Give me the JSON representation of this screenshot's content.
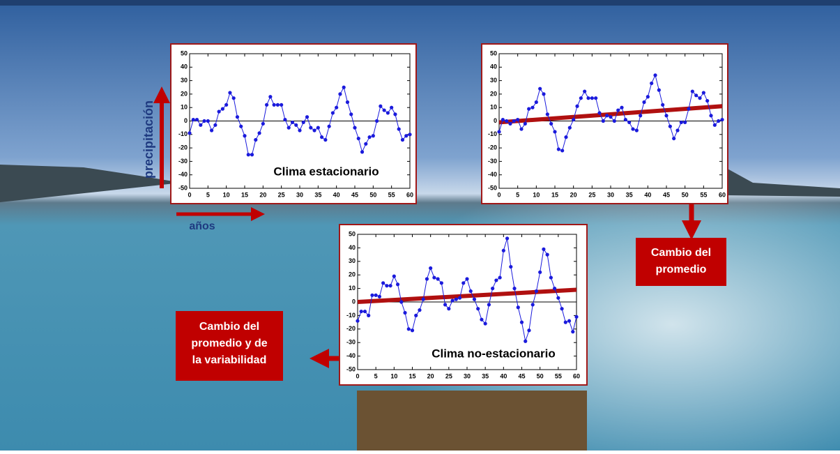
{
  "chart_data": [
    {
      "type": "line",
      "title": "Clima estacionario",
      "x": [
        0,
        1,
        2,
        3,
        4,
        5,
        6,
        7,
        8,
        9,
        10,
        11,
        12,
        13,
        14,
        15,
        16,
        17,
        18,
        19,
        20,
        21,
        22,
        23,
        24,
        25,
        26,
        27,
        28,
        29,
        30,
        31,
        32,
        33,
        34,
        35,
        36,
        37,
        38,
        39,
        40,
        41,
        42,
        43,
        44,
        45,
        46,
        47,
        48,
        49,
        50,
        51,
        52,
        53,
        54,
        55,
        56,
        57,
        58,
        59,
        60
      ],
      "series": [
        {
          "color": "#1a1adc",
          "values": [
            -9,
            1,
            1,
            -3,
            0,
            0,
            -7,
            -3,
            7,
            9,
            12,
            21,
            17,
            3,
            -4,
            -11,
            -25,
            -25,
            -14,
            -9,
            -2,
            12,
            18,
            12,
            12,
            12,
            1,
            -5,
            -1,
            -3,
            -7,
            -1,
            3,
            -5,
            -7,
            -5,
            -12,
            -14,
            -4,
            6,
            10,
            20,
            25,
            14,
            5,
            -5,
            -13,
            -23,
            -17,
            -12,
            -11,
            0,
            11,
            8,
            6,
            10,
            5,
            -6,
            -14,
            -11,
            -10
          ]
        }
      ],
      "xlim": [
        0,
        60
      ],
      "xticks": [
        0,
        5,
        10,
        15,
        20,
        25,
        30,
        35,
        40,
        45,
        50,
        55,
        60
      ],
      "ylim": [
        -50,
        50
      ],
      "yticks": [
        -50,
        -40,
        -30,
        -20,
        -10,
        0,
        10,
        20,
        30,
        40,
        50
      ]
    },
    {
      "type": "line",
      "x": [
        0,
        1,
        2,
        3,
        4,
        5,
        6,
        7,
        8,
        9,
        10,
        11,
        12,
        13,
        14,
        15,
        16,
        17,
        18,
        19,
        20,
        21,
        22,
        23,
        24,
        25,
        26,
        27,
        28,
        29,
        30,
        31,
        32,
        33,
        34,
        35,
        36,
        37,
        38,
        39,
        40,
        41,
        42,
        43,
        44,
        45,
        46,
        47,
        48,
        49,
        50,
        51,
        52,
        53,
        54,
        55,
        56,
        57,
        58,
        59,
        60
      ],
      "series": [
        {
          "color": "#1a1adc",
          "values": [
            -8,
            1,
            0,
            -2,
            0,
            1,
            -6,
            -2,
            9,
            10,
            14,
            24,
            20,
            5,
            -2,
            -8,
            -21,
            -22,
            -12,
            -5,
            1,
            11,
            17,
            22,
            17,
            17,
            17,
            6,
            0,
            4,
            3,
            0,
            8,
            10,
            1,
            -1,
            -6,
            -7,
            4,
            14,
            18,
            28,
            34,
            23,
            12,
            4,
            -4,
            -13,
            -7,
            -1,
            -1,
            9,
            22,
            19,
            17,
            21,
            15,
            4,
            -3,
            0,
            1
          ]
        }
      ],
      "trend": {
        "color": "#b01010",
        "x": [
          0,
          60
        ],
        "values": [
          -1,
          11
        ]
      },
      "xlim": [
        0,
        60
      ],
      "xticks": [
        0,
        5,
        10,
        15,
        20,
        25,
        30,
        35,
        40,
        45,
        50,
        55,
        60
      ],
      "ylim": [
        -50,
        50
      ],
      "yticks": [
        -50,
        -40,
        -30,
        -20,
        -10,
        0,
        10,
        20,
        30,
        40,
        50
      ]
    },
    {
      "type": "line",
      "title": "Clima no-estacionario",
      "x": [
        0,
        1,
        2,
        3,
        4,
        5,
        6,
        7,
        8,
        9,
        10,
        11,
        12,
        13,
        14,
        15,
        16,
        17,
        18,
        19,
        20,
        21,
        22,
        23,
        24,
        25,
        26,
        27,
        28,
        29,
        30,
        31,
        32,
        33,
        34,
        35,
        36,
        37,
        38,
        39,
        40,
        41,
        42,
        43,
        44,
        45,
        46,
        47,
        48,
        49,
        50,
        51,
        52,
        53,
        54,
        55,
        56,
        57,
        58,
        59,
        60
      ],
      "series": [
        {
          "color": "#1a1adc",
          "values": [
            -14,
            -7,
            -7,
            -10,
            5,
            5,
            4,
            14,
            12,
            12,
            19,
            13,
            0,
            -8,
            -20,
            -21,
            -10,
            -6,
            2,
            17,
            25,
            18,
            17,
            14,
            -2,
            -5,
            1,
            2,
            3,
            14,
            17,
            8,
            2,
            -5,
            -13,
            -16,
            -2,
            10,
            16,
            18,
            38,
            47,
            26,
            10,
            -4,
            -15,
            -29,
            -21,
            -2,
            8,
            22,
            39,
            35,
            18,
            10,
            3,
            -5,
            -15,
            -14,
            -22,
            -11
          ]
        }
      ],
      "trend": {
        "color": "#b01010",
        "x": [
          0,
          60
        ],
        "values": [
          0,
          9
        ]
      },
      "xlim": [
        0,
        60
      ],
      "xticks": [
        0,
        5,
        10,
        15,
        20,
        25,
        30,
        35,
        40,
        45,
        50,
        55,
        60
      ],
      "ylim": [
        -50,
        50
      ],
      "yticks": [
        -50,
        -40,
        -30,
        -20,
        -10,
        0,
        10,
        20,
        30,
        40,
        50
      ]
    }
  ],
  "y_label": "precipitación",
  "x_label": "años",
  "mean_note": [
    "Cambio del",
    "promedio"
  ],
  "variability_note": [
    "Cambio del",
    "promedio y de",
    "la variabilidad"
  ]
}
